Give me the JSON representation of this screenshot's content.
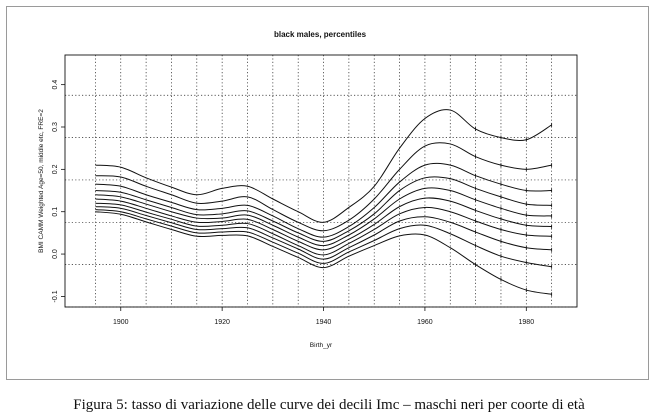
{
  "chart_data": {
    "type": "line",
    "title": "black males, percentiles",
    "xlabel": "Birth_yr",
    "ylabel": "BMI CAMM Weighted Age=50, middle etc, FRE=2",
    "xlim": [
      1889,
      1990
    ],
    "ylim": [
      -0.125,
      0.47
    ],
    "xticks": [
      1900,
      1920,
      1940,
      1960,
      1980
    ],
    "yticks": [
      -0.1,
      0.0,
      0.1,
      0.2,
      0.3,
      0.4
    ],
    "ytick_labels": [
      "-0.1",
      "0.0",
      "0.1",
      "0.2",
      "0.3",
      "0.4"
    ],
    "grid": "dotted",
    "x": [
      1895,
      1900,
      1905,
      1910,
      1915,
      1920,
      1925,
      1930,
      1935,
      1940,
      1945,
      1950,
      1955,
      1960,
      1965,
      1970,
      1975,
      1980,
      1985
    ],
    "series": [
      {
        "values": [
          0.21,
          0.205,
          0.18,
          0.158,
          0.14,
          0.155,
          0.16,
          0.13,
          0.1,
          0.075,
          0.11,
          0.16,
          0.25,
          0.32,
          0.34,
          0.295,
          0.275,
          0.27,
          0.305
        ]
      },
      {
        "values": [
          0.185,
          0.182,
          0.16,
          0.14,
          0.12,
          0.125,
          0.135,
          0.105,
          0.075,
          0.055,
          0.08,
          0.13,
          0.2,
          0.255,
          0.26,
          0.23,
          0.21,
          0.2,
          0.21
        ]
      },
      {
        "values": [
          0.165,
          0.16,
          0.14,
          0.122,
          0.105,
          0.108,
          0.115,
          0.09,
          0.06,
          0.04,
          0.065,
          0.11,
          0.17,
          0.21,
          0.21,
          0.185,
          0.165,
          0.15,
          0.15
        ]
      },
      {
        "values": [
          0.15,
          0.146,
          0.128,
          0.11,
          0.093,
          0.095,
          0.102,
          0.078,
          0.05,
          0.03,
          0.055,
          0.095,
          0.15,
          0.18,
          0.178,
          0.155,
          0.135,
          0.118,
          0.115
        ]
      },
      {
        "values": [
          0.14,
          0.135,
          0.118,
          0.1,
          0.085,
          0.085,
          0.092,
          0.068,
          0.04,
          0.02,
          0.045,
          0.083,
          0.13,
          0.155,
          0.15,
          0.128,
          0.108,
          0.092,
          0.09
        ]
      },
      {
        "values": [
          0.13,
          0.125,
          0.108,
          0.09,
          0.075,
          0.077,
          0.082,
          0.058,
          0.03,
          0.01,
          0.035,
          0.07,
          0.112,
          0.132,
          0.125,
          0.103,
          0.083,
          0.068,
          0.065
        ]
      },
      {
        "values": [
          0.12,
          0.116,
          0.099,
          0.082,
          0.066,
          0.068,
          0.072,
          0.048,
          0.02,
          -0.002,
          0.025,
          0.058,
          0.095,
          0.11,
          0.1,
          0.078,
          0.058,
          0.045,
          0.042
        ]
      },
      {
        "values": [
          0.112,
          0.108,
          0.091,
          0.074,
          0.058,
          0.06,
          0.062,
          0.038,
          0.012,
          -0.012,
          0.015,
          0.045,
          0.078,
          0.088,
          0.075,
          0.052,
          0.03,
          0.015,
          0.01
        ]
      },
      {
        "values": [
          0.105,
          0.1,
          0.083,
          0.066,
          0.05,
          0.052,
          0.052,
          0.028,
          0.002,
          -0.022,
          0.005,
          0.032,
          0.06,
          0.068,
          0.048,
          0.02,
          -0.005,
          -0.02,
          -0.03
        ]
      },
      {
        "values": [
          0.1,
          0.094,
          0.076,
          0.058,
          0.042,
          0.044,
          0.043,
          0.018,
          -0.008,
          -0.032,
          -0.005,
          0.02,
          0.043,
          0.045,
          0.015,
          -0.025,
          -0.06,
          -0.085,
          -0.095
        ]
      }
    ]
  },
  "caption": "Figura 5: tasso di variazione delle curve dei decili Imc – maschi neri per coorte di età"
}
